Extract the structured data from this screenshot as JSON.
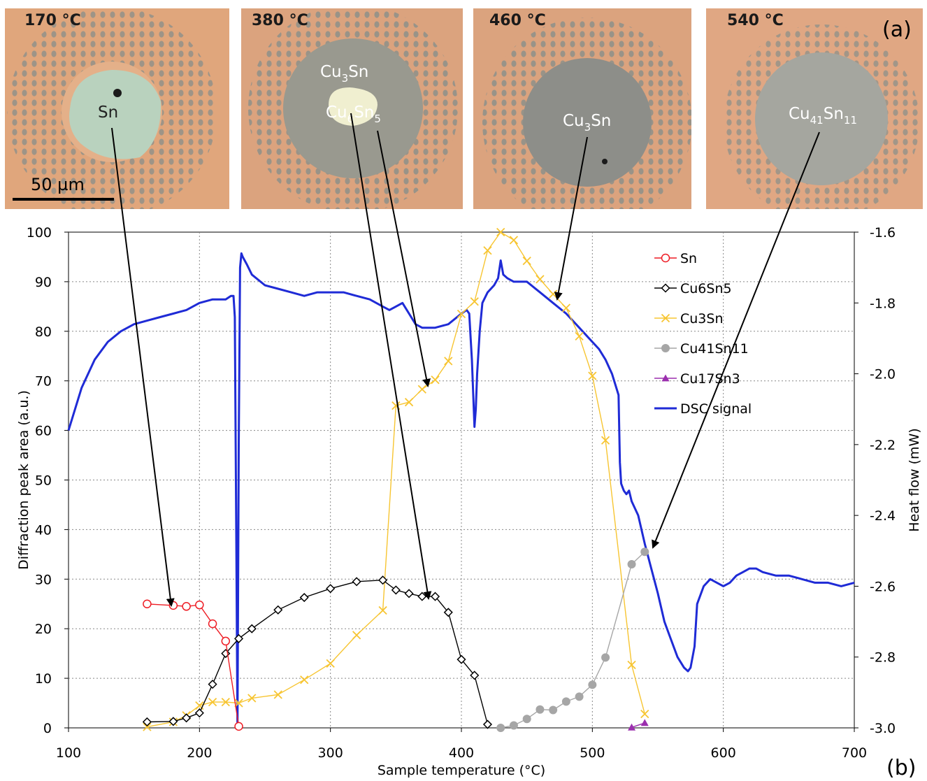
{
  "panel_tag_a": "(a)",
  "panel_tag_b": "(b)",
  "micrographs": [
    {
      "temp": "170 °C",
      "label": "Sn",
      "label_sub": [],
      "bg": "#e0a67c",
      "ring": "#e0a67c",
      "core": "#a8c7b4",
      "scale_label": "50 µm"
    },
    {
      "temp": "380 °C",
      "label": "Cu3Sn",
      "label_parts": [
        "Cu",
        "3",
        "Sn"
      ],
      "label2_parts": [
        "Cu",
        "6",
        "Sn",
        "5"
      ],
      "bg": "#dba37e",
      "ring": "#9a9a8a",
      "core": "#8a9088"
    },
    {
      "temp": "460 °C",
      "label_parts": [
        "Cu",
        "3",
        "Sn"
      ],
      "bg": "#dba37e",
      "ring": "#8f908a",
      "core": "#8a8c88"
    },
    {
      "temp": "540 °C",
      "label_parts": [
        "Cu",
        "41",
        "Sn",
        "11"
      ],
      "bg": "#e0a783",
      "ring": "#a9a79a",
      "core": "#a3a49d"
    }
  ],
  "chart_data": {
    "type": "line",
    "xlabel": "Sample temperature (°C)",
    "ylabel": "Diffraction peak area (a.u.)",
    "y2label": "Heat flow (mW)",
    "xlim": [
      100,
      700
    ],
    "ylim": [
      0,
      100
    ],
    "y2lim": [
      -3.0,
      -1.6
    ],
    "xticks": [
      100,
      200,
      300,
      400,
      500,
      600,
      700
    ],
    "yticks": [
      0,
      10,
      20,
      30,
      40,
      50,
      60,
      70,
      80,
      90,
      100
    ],
    "y2ticks": [
      -3.0,
      -2.8,
      -2.6,
      -2.4,
      -2.2,
      -2.0,
      -1.8,
      -1.6
    ],
    "y2ticklabels": [
      "-3.0",
      "-2.8",
      "-2.6",
      "-2.4",
      "-2.2",
      "-2.0",
      "-1.8",
      "-1.6"
    ],
    "grid": true,
    "legend_position": "top-right",
    "series": [
      {
        "name": "Sn",
        "color": "#ee1c24",
        "marker": "circle-open",
        "x": [
          160,
          180,
          190,
          200,
          210,
          220,
          230
        ],
        "y": [
          25,
          24.7,
          24.5,
          24.8,
          21,
          17.5,
          0.3
        ]
      },
      {
        "name": "Cu6Sn5",
        "color": "#000000",
        "marker": "diamond-open",
        "x": [
          160,
          180,
          190,
          200,
          210,
          220,
          230,
          240,
          260,
          280,
          300,
          320,
          340,
          350,
          360,
          370,
          380,
          390,
          400,
          410,
          420
        ],
        "y": [
          1.2,
          1.3,
          2,
          3,
          8.8,
          15,
          18,
          20,
          23.8,
          26.3,
          28.1,
          29.5,
          29.8,
          27.8,
          27.1,
          26.5,
          26.5,
          23.3,
          13.8,
          10.6,
          0.7
        ]
      },
      {
        "name": "Cu3Sn",
        "color": "#f7c532",
        "marker": "x",
        "x": [
          160,
          180,
          190,
          200,
          210,
          220,
          230,
          240,
          260,
          280,
          300,
          320,
          340,
          350,
          360,
          370,
          380,
          390,
          400,
          410,
          420,
          430,
          440,
          450,
          460,
          470,
          480,
          490,
          500,
          510,
          530,
          540
        ],
        "y": [
          0.2,
          1.2,
          2.5,
          4.5,
          5.2,
          5.2,
          5,
          6,
          6.7,
          9.7,
          13,
          18.7,
          23.7,
          65,
          65.7,
          68.3,
          70.2,
          74,
          83.5,
          86,
          96.3,
          100,
          98.4,
          94.2,
          90.5,
          87.5,
          84.7,
          79,
          71,
          58,
          12.7,
          2.8
        ]
      },
      {
        "name": "Cu41Sn11",
        "color": "#a6a6a6",
        "marker": "circle-filled",
        "x": [
          430,
          440,
          450,
          460,
          470,
          480,
          490,
          500,
          510,
          530,
          540
        ],
        "y": [
          0,
          0.5,
          1.8,
          3.7,
          3.6,
          5.3,
          6.3,
          8.7,
          14.2,
          33,
          35.5
        ]
      },
      {
        "name": "Cu17Sn3",
        "color": "#9b2fae",
        "marker": "triangle-filled",
        "x": [
          530,
          540
        ],
        "y": [
          0.1,
          1
        ]
      }
    ],
    "dsc": {
      "name": "DSC signal",
      "color": "#1f2bd6",
      "x": [
        100,
        110,
        120,
        130,
        140,
        150,
        160,
        170,
        180,
        190,
        200,
        210,
        220,
        224,
        226,
        227,
        228,
        229,
        230,
        231,
        232,
        233,
        236,
        240,
        250,
        260,
        270,
        280,
        290,
        300,
        310,
        320,
        330,
        340,
        345,
        350,
        355,
        360,
        365,
        370,
        375,
        380,
        390,
        400,
        404,
        406,
        408,
        410,
        411,
        412,
        414,
        416,
        420,
        425,
        428,
        430,
        432,
        435,
        440,
        445,
        450,
        460,
        470,
        480,
        490,
        500,
        505,
        510,
        515,
        520,
        521,
        522,
        524,
        526,
        528,
        530,
        535,
        540,
        545,
        550,
        555,
        560,
        565,
        570,
        573,
        575,
        578,
        580,
        585,
        590,
        600,
        605,
        610,
        615,
        620,
        625,
        630,
        640,
        650,
        660,
        670,
        680,
        690,
        700
      ],
      "y": [
        -2.16,
        -2.04,
        -1.96,
        -1.91,
        -1.88,
        -1.86,
        -1.85,
        -1.84,
        -1.83,
        -1.82,
        -1.8,
        -1.79,
        -1.79,
        -1.78,
        -1.78,
        -1.84,
        -2.4,
        -3.0,
        -2.2,
        -1.7,
        -1.66,
        -1.67,
        -1.69,
        -1.72,
        -1.75,
        -1.76,
        -1.77,
        -1.78,
        -1.77,
        -1.77,
        -1.77,
        -1.78,
        -1.79,
        -1.81,
        -1.82,
        -1.81,
        -1.8,
        -1.83,
        -1.86,
        -1.87,
        -1.87,
        -1.87,
        -1.86,
        -1.83,
        -1.82,
        -1.83,
        -1.96,
        -2.15,
        -2.1,
        -2.0,
        -1.88,
        -1.8,
        -1.77,
        -1.75,
        -1.73,
        -1.68,
        -1.72,
        -1.73,
        -1.74,
        -1.74,
        -1.74,
        -1.77,
        -1.8,
        -1.83,
        -1.87,
        -1.91,
        -1.93,
        -1.96,
        -2.0,
        -2.06,
        -2.25,
        -2.31,
        -2.33,
        -2.34,
        -2.33,
        -2.36,
        -2.4,
        -2.48,
        -2.55,
        -2.62,
        -2.7,
        -2.75,
        -2.8,
        -2.83,
        -2.84,
        -2.83,
        -2.77,
        -2.65,
        -2.6,
        -2.58,
        -2.6,
        -2.59,
        -2.57,
        -2.56,
        -2.55,
        -2.55,
        -2.56,
        -2.57,
        -2.57,
        -2.58,
        -2.59,
        -2.59,
        -2.6,
        -2.59
      ]
    }
  }
}
